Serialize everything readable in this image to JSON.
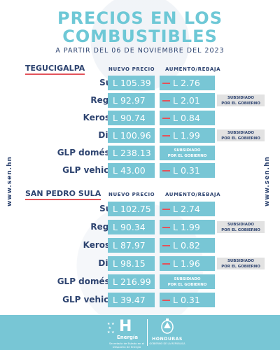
{
  "header": {
    "title_line1": "PRECIOS EN LOS",
    "title_line2": "COMBUSTIBLES",
    "subtitle": "A PARTIR DEL 06 DE NOVIEMBRE DEL 2023"
  },
  "side_url": "www.sen.hn",
  "columns": {
    "price": "NUEVO PRECIO",
    "change": "AUMENTO/REBAJA"
  },
  "sections": [
    {
      "city": "TEGUCIGALPA",
      "rows": [
        {
          "fuel": "Súper",
          "price": "L 105.39",
          "change": "L 2.76",
          "note": ""
        },
        {
          "fuel": "Regular",
          "price": "L 92.97",
          "change": "L 2.01",
          "note_line1": "SUBSIDIADO",
          "note_line2": "POR EL GOBIERNO"
        },
        {
          "fuel": "Kerosene",
          "price": "L 90.74",
          "change": "L 0.84",
          "note": ""
        },
        {
          "fuel": "Diésel",
          "price": "L 100.96",
          "change": "L 1.99",
          "note_line1": "SUBSIDIADO",
          "note_line2": "POR EL GOBIERNO"
        },
        {
          "fuel": "GLP doméstico",
          "price": "L 238.13",
          "change_line1": "SUBSIDIADO",
          "change_line2": "POR EL GOBIERNO"
        },
        {
          "fuel": "GLP vehicular",
          "price": "L 43.00",
          "change": "L 0.31",
          "note": ""
        }
      ]
    },
    {
      "city": "SAN PEDRO SULA",
      "rows": [
        {
          "fuel": "Súper",
          "price": "L 102.75",
          "change": "L 2.74",
          "note": ""
        },
        {
          "fuel": "Regular",
          "price": "L 90.34",
          "change": "L 1.99",
          "note_line1": "SUBSIDIADO",
          "note_line2": "POR EL GOBIERNO"
        },
        {
          "fuel": "Kerosene",
          "price": "L 87.97",
          "change": "L 0.82",
          "note": ""
        },
        {
          "fuel": "Diésel",
          "price": "L 98.15",
          "change": "L 1.96",
          "note_line1": "SUBSIDIADO",
          "note_line2": "POR EL GOBIERNO"
        },
        {
          "fuel": "GLP doméstico",
          "price": "L 216.99",
          "change_line1": "SUBSIDIADO",
          "change_line2": "POR EL GOBIERNO"
        },
        {
          "fuel": "GLP vehicular",
          "price": "L 39.47",
          "change": "L 0.31",
          "note": ""
        }
      ]
    }
  ],
  "footer": {
    "energia_letter": "H",
    "energia_name": "Energía",
    "energia_sub": "Secretaría de Estado en el Despacho de Energía",
    "honduras_name": "HONDURAS",
    "honduras_sub": "GOBIERNO DE LA REPÚBLICA"
  },
  "colors": {
    "accent": "#78c6d5",
    "title": "#6ec8d6",
    "navy": "#2e4470",
    "red": "#e3535a",
    "subsidy_bg": "#e2e2e2"
  },
  "icons": {
    "decrease": "red-dash-icon",
    "stars": "five-stars-icon",
    "emblem": "honduras-coat-of-arms-icon"
  }
}
